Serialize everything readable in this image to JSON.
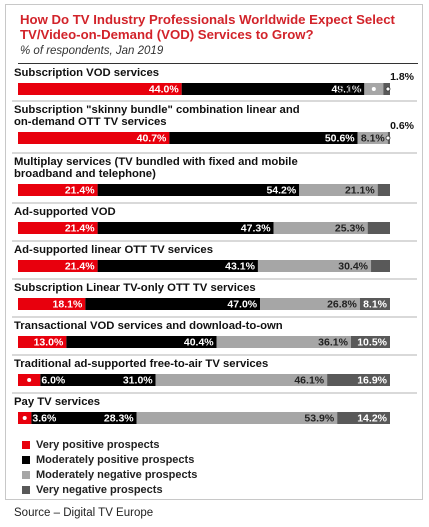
{
  "chart_data": {
    "type": "bar",
    "orientation": "horizontal",
    "stacked": true,
    "title": "How Do TV Industry Professionals Worldwide Expect Select TV/Video-on-Demand (VOD) Services to Grow?",
    "subtitle": "% of respondents, Jan 2019",
    "xlim": [
      0,
      100
    ],
    "legend_position": "bottom-left",
    "categories": [
      "Subscription VOD services",
      "Subscription \"skinny bundle\" combination linear and on-demand OTT TV services",
      "Multiplay services (TV bundled with fixed and mobile broadband and telephone)",
      "Ad-supported VOD",
      "Ad-supported linear OTT TV services",
      "Subscription Linear TV-only OTT TV services",
      "Transactional VOD services and download-to-own",
      "Traditional ad-supported free-to-air TV services",
      "Pay TV services"
    ],
    "category_lines": [
      [
        "Subscription VOD services"
      ],
      [
        "Subscription \"skinny bundle\" combination linear and",
        "on-demand OTT TV services"
      ],
      [
        "Multiplay services (TV bundled with fixed and mobile",
        "broadband and telephone)"
      ],
      [
        "Ad-supported VOD"
      ],
      [
        "Ad-supported linear OTT TV services"
      ],
      [
        "Subscription Linear TV-only OTT TV services"
      ],
      [
        "Transactional VOD services and download-to-own"
      ],
      [
        "Traditional ad-supported free-to-air TV services"
      ],
      [
        "Pay TV services"
      ]
    ],
    "series": [
      {
        "name": "Very positive prospects",
        "color": "#e8000d",
        "values": [
          44.0,
          40.7,
          21.4,
          21.4,
          21.4,
          18.1,
          13.0,
          6.0,
          3.6
        ]
      },
      {
        "name": "Moderately positive prospects",
        "color": "#000000",
        "values": [
          49.1,
          50.6,
          54.2,
          47.3,
          43.1,
          47.0,
          40.4,
          31.0,
          28.3
        ]
      },
      {
        "name": "Moderately negative prospects",
        "color": "#a6a6a6",
        "values": [
          5.1,
          8.1,
          21.1,
          25.3,
          30.4,
          26.8,
          36.1,
          46.1,
          53.9
        ]
      },
      {
        "name": "Very negative prospects",
        "color": "#595959",
        "values": [
          1.8,
          0.6,
          3.3,
          6.0,
          5.1,
          8.1,
          10.5,
          16.9,
          14.2
        ]
      }
    ],
    "labels": [
      [
        "44.0%",
        "49.1%",
        "5.1%",
        "1.8%"
      ],
      [
        "40.7%",
        "50.6%",
        "8.1%",
        "0.6%"
      ],
      [
        "21.4%",
        "54.2%",
        "21.1%",
        "3.3%"
      ],
      [
        "21.4%",
        "47.3%",
        "25.3%",
        "6.0%"
      ],
      [
        "21.4%",
        "43.1%",
        "30.4%",
        "5.1%"
      ],
      [
        "18.1%",
        "47.0%",
        "26.8%",
        "8.1%"
      ],
      [
        "13.0%",
        "40.4%",
        "36.1%",
        "10.5%"
      ],
      [
        "6.0%",
        "31.0%",
        "46.1%",
        "16.9%"
      ],
      [
        "3.6%",
        "28.3%",
        "53.9%",
        "14.2%"
      ]
    ]
  },
  "source": "Source – Digital TV Europe"
}
